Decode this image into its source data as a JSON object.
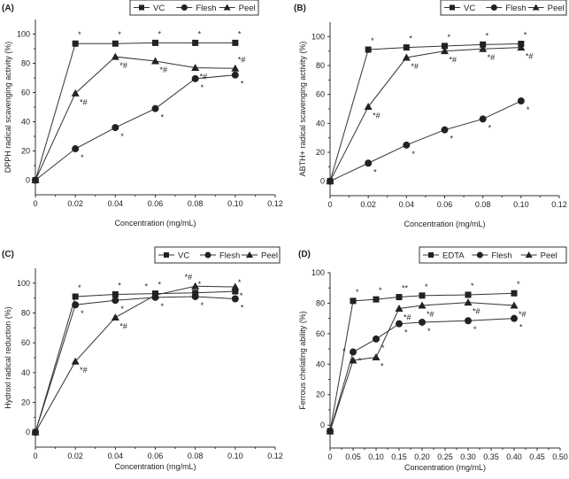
{
  "chart_data": [
    {
      "panel_label": "(A)",
      "type": "line",
      "xlabel": "Concentration (mg/mL)",
      "ylabel": "DPPH radical scavenging activity (%)",
      "x": [
        0,
        0.02,
        0.04,
        0.06,
        0.08,
        0.1
      ],
      "xticks": [
        "0",
        "0.02",
        "0.04",
        "0.06",
        "0.08",
        "0.10",
        "0.12"
      ],
      "xlim": [
        0,
        0.12
      ],
      "yticks": [
        "0",
        "20",
        "40",
        "60",
        "80",
        "100"
      ],
      "ylim": [
        -10,
        110
      ],
      "legend": "top-right",
      "series": [
        {
          "name": "VC",
          "marker": "square",
          "values": [
            0,
            93.5,
            93.5,
            94,
            94,
            94
          ],
          "annotations": [
            "",
            "*",
            "*",
            "*",
            "*",
            "*"
          ]
        },
        {
          "name": "Flesh",
          "marker": "circle",
          "values": [
            0,
            21.5,
            36,
            49,
            69.5,
            72
          ],
          "annotations": [
            "",
            "*",
            "*",
            "*",
            "*",
            "*"
          ]
        },
        {
          "name": "Peel",
          "marker": "triangle",
          "values": [
            0,
            59.5,
            84.5,
            81.5,
            77,
            76.5
          ],
          "annotations": [
            "",
            "*#",
            "*#",
            "*#",
            "*#",
            "*#"
          ]
        }
      ]
    },
    {
      "panel_label": "(B)",
      "type": "line",
      "xlabel": "Concentration (mg/mL)",
      "ylabel": "ABTH+ radical scavenging activity (%)",
      "x": [
        0,
        0.02,
        0.04,
        0.06,
        0.08,
        0.1
      ],
      "xticks": [
        "0",
        "0.02",
        "0.04",
        "0.06",
        "0.08",
        "0.10",
        "0.12"
      ],
      "xlim": [
        0,
        0.12
      ],
      "yticks": [
        "0",
        "20",
        "40",
        "60",
        "80",
        "100"
      ],
      "ylim": [
        -10,
        110
      ],
      "legend": "top-right",
      "series": [
        {
          "name": "VC",
          "marker": "square",
          "values": [
            0,
            91,
            92.5,
            93.5,
            94.5,
            95
          ],
          "annotations": [
            "",
            "*",
            "*",
            "*",
            "*",
            "*"
          ]
        },
        {
          "name": "Flesh",
          "marker": "circle",
          "values": [
            0,
            12.5,
            25,
            35.5,
            43,
            55.5
          ],
          "annotations": [
            "",
            "*",
            "*",
            "*",
            "*",
            "*"
          ]
        },
        {
          "name": "Peel",
          "marker": "triangle",
          "values": [
            0,
            51.5,
            85.5,
            90,
            91.5,
            92.5
          ],
          "annotations": [
            "",
            "*#",
            "*#",
            "*#",
            "*#",
            "*#"
          ]
        }
      ]
    },
    {
      "panel_label": "(C)",
      "type": "line",
      "xlabel": "Concentration (mg/mL)",
      "ylabel": "Hydroxl radical reduction (%)",
      "x": [
        0,
        0.02,
        0.04,
        0.06,
        0.08,
        0.1
      ],
      "xticks": [
        "0",
        "0.02",
        "0.04",
        "0.06",
        "0.08",
        "0.10",
        "0.12"
      ],
      "xlim": [
        0,
        0.12
      ],
      "yticks": [
        "0",
        "20",
        "40",
        "60",
        "80",
        "100"
      ],
      "ylim": [
        -10,
        110
      ],
      "legend": "top-right",
      "series": [
        {
          "name": "VC",
          "marker": "square",
          "values": [
            0,
            91,
            92.5,
            93,
            93.5,
            94.5
          ],
          "annotations": [
            "",
            "*",
            "*",
            "*",
            "*",
            "*"
          ]
        },
        {
          "name": "Flesh",
          "marker": "circle",
          "values": [
            0,
            85.5,
            88.5,
            90.5,
            91,
            89.5
          ],
          "annotations": [
            "",
            "*",
            "*",
            "*",
            "*",
            "*"
          ]
        },
        {
          "name": "Peel",
          "marker": "triangle",
          "values": [
            0,
            47.5,
            77,
            92,
            98,
            97.5
          ],
          "annotations": [
            "",
            "*#",
            "*#",
            "*",
            "*#",
            "*"
          ]
        }
      ]
    },
    {
      "panel_label": "(D)",
      "type": "line",
      "xlabel": "Concentration (mg/mL)",
      "ylabel": "Ferrous chelating ability (%)",
      "x": [
        0,
        0.05,
        0.1,
        0.15,
        0.2,
        0.3,
        0.4
      ],
      "xticks": [
        "0",
        "0.05",
        "0.10",
        "0.15",
        "0.20",
        "0.25",
        "0.30",
        "0.35",
        "0.40",
        "0.45",
        "0.50"
      ],
      "xlim": [
        0,
        0.5
      ],
      "yticks": [
        "0",
        "20",
        "40",
        "60",
        "80",
        "100"
      ],
      "ylim": [
        -15,
        100
      ],
      "legend": "top-right",
      "series": [
        {
          "name": "EDTA",
          "marker": "square",
          "values": [
            -4,
            81.5,
            82.5,
            84,
            85,
            85.5,
            86.5
          ],
          "annotations": [
            "",
            "*",
            "*",
            "**",
            "*",
            "*",
            "*"
          ]
        },
        {
          "name": "Flesh",
          "marker": "circle",
          "values": [
            -4,
            48,
            56.5,
            66.5,
            67.5,
            68.5,
            70
          ],
          "annotations": [
            "",
            "*",
            "*",
            "*",
            "*",
            "*",
            "*"
          ]
        },
        {
          "name": "Peel",
          "marker": "triangle",
          "values": [
            -4,
            42.5,
            44.5,
            76.5,
            78.5,
            80.5,
            78.5
          ],
          "annotations": [
            "",
            "*",
            "*",
            "*#",
            "*#",
            "*#",
            "*#"
          ]
        }
      ]
    }
  ],
  "colors": {
    "line": "#333333",
    "marker": "#222222",
    "axis": "#333333"
  }
}
